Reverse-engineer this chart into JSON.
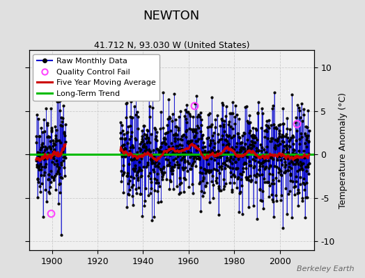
{
  "title": "NEWTON",
  "subtitle": "41.712 N, 93.030 W (United States)",
  "ylabel": "Temperature Anomaly (°C)",
  "watermark": "Berkeley Earth",
  "ylim": [
    -11,
    12
  ],
  "yticks": [
    -10,
    -5,
    0,
    5,
    10
  ],
  "xlim": [
    1890,
    2015
  ],
  "xticks": [
    1900,
    1920,
    1940,
    1960,
    1980,
    2000
  ],
  "fig_bg": "#e0e0e0",
  "plot_bg": "#f0f0f0",
  "seed": 42,
  "seg1_start": 1893,
  "seg1_end": 1905,
  "seg2_start": 1930,
  "seg2_end": 2012,
  "raw_color": "#0000cc",
  "ma_color": "#cc0000",
  "trend_color": "#00bb00",
  "qc_color": "#ff44ff",
  "ma_lw": 2.0,
  "trend_lw": 2.2,
  "stem_lw": 0.7,
  "dot_size": 2.0,
  "qc_points": [
    [
      1899.5,
      -6.8
    ],
    [
      1962.5,
      5.6
    ],
    [
      2007.5,
      3.5
    ]
  ],
  "grid_color": "#cccccc",
  "title_fontsize": 13,
  "subtitle_fontsize": 9,
  "tick_fontsize": 9,
  "ylabel_fontsize": 9,
  "legend_fontsize": 8,
  "watermark_fontsize": 8
}
